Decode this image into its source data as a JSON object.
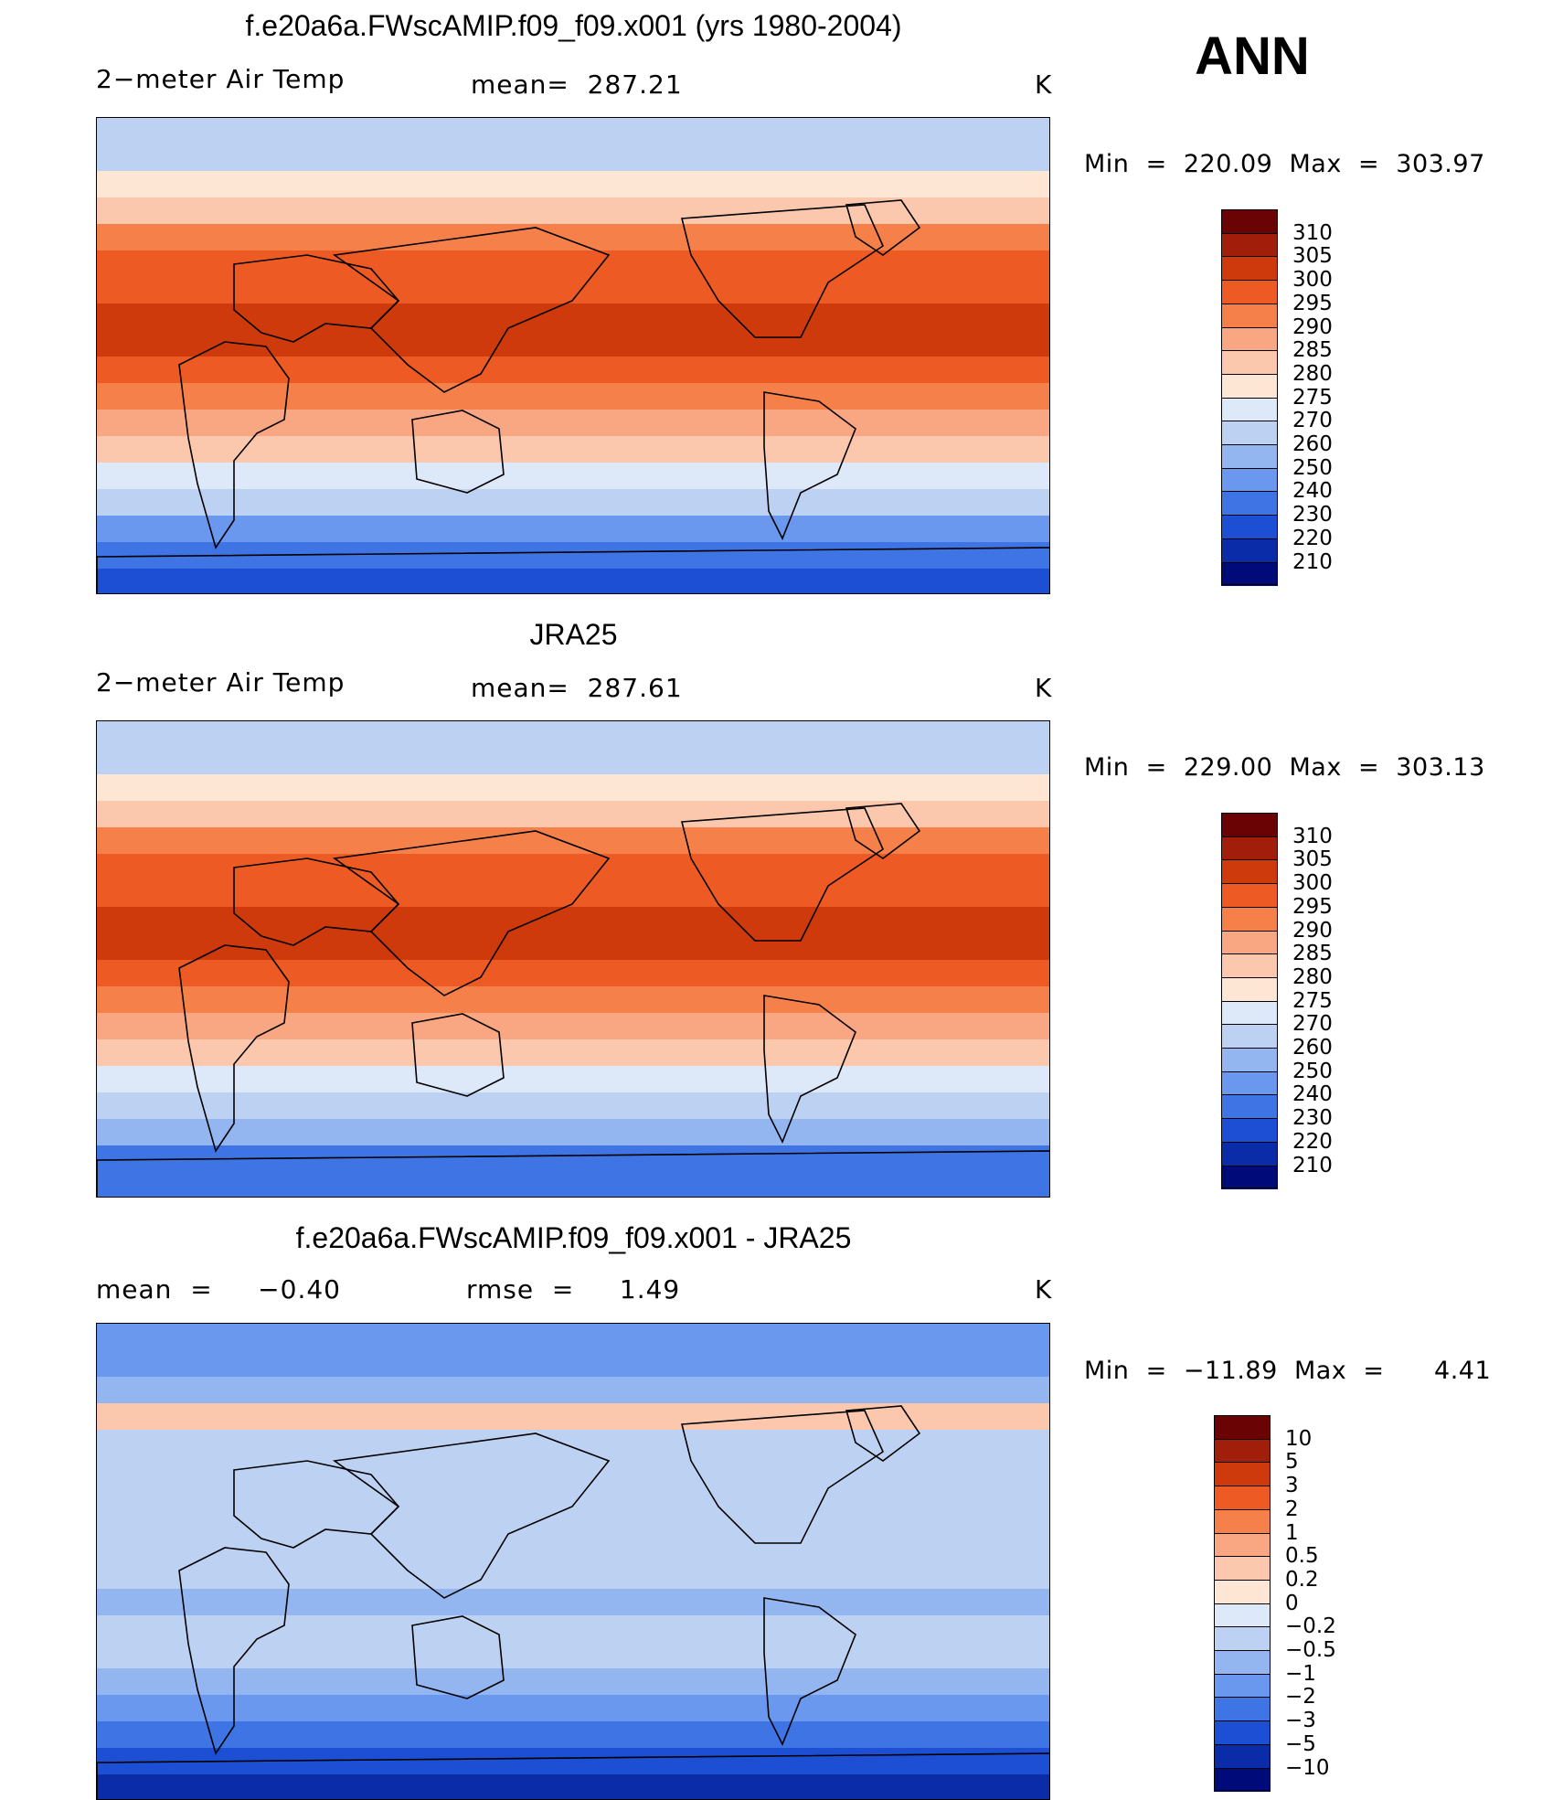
{
  "season": "ANN",
  "panels": [
    {
      "title": "f.e20a6a.FWscAMIP.f09_f09.x001 (yrs 1980-2004)",
      "left_label": "2−meter Air Temp",
      "center_label": "mean=  287.21",
      "right_label": "K",
      "minmax": "Min  =  220.09  Max  =  303.97",
      "palette": "abs"
    },
    {
      "title": "JRA25",
      "left_label": "2−meter Air Temp",
      "center_label": "mean=  287.61",
      "right_label": "K",
      "minmax": "Min  =  229.00  Max  =  303.13",
      "palette": "abs"
    },
    {
      "title": "f.e20a6a.FWscAMIP.f09_f09.x001 - JRA25",
      "left_label": "mean  =     −0.40",
      "center_label": "rmse  =     1.49",
      "right_label": "K",
      "minmax": "Min  =  −11.89  Max  =      4.41",
      "palette": "diff"
    }
  ],
  "chart_data": [
    {
      "type": "heatmap",
      "title": "f.e20a6a.FWscAMIP.f09_f09.x001 (yrs 1980-2004)",
      "variable": "2-meter Air Temp",
      "units": "K",
      "mean": 287.21,
      "min": 220.09,
      "max": 303.97,
      "colorbar_levels": [
        "310",
        "305",
        "300",
        "295",
        "290",
        "285",
        "280",
        "275",
        "270",
        "260",
        "250",
        "240",
        "230",
        "220",
        "210"
      ],
      "zonal_band_values_north_to_south": [
        260,
        268,
        277,
        283,
        292,
        297,
        299,
        300,
        300,
        298,
        294,
        287,
        280,
        272,
        262,
        248,
        235,
        225
      ]
    },
    {
      "type": "heatmap",
      "title": "JRA25",
      "variable": "2-meter Air Temp",
      "units": "K",
      "mean": 287.61,
      "min": 229.0,
      "max": 303.13,
      "colorbar_levels": [
        "310",
        "305",
        "300",
        "295",
        "290",
        "285",
        "280",
        "275",
        "270",
        "260",
        "250",
        "240",
        "230",
        "220",
        "210"
      ],
      "zonal_band_values_north_to_south": [
        262,
        268,
        276,
        283,
        291,
        296,
        299,
        300,
        300,
        298,
        294,
        287,
        280,
        273,
        264,
        250,
        238,
        230
      ]
    },
    {
      "type": "heatmap",
      "title": "f.e20a6a.FWscAMIP.f09_f09.x001 - JRA25",
      "variable": "difference",
      "units": "K",
      "mean": -0.4,
      "rmse": 1.49,
      "min": -11.89,
      "max": 4.41,
      "colorbar_levels": [
        "10",
        "5",
        "3",
        "2",
        "1",
        "0.5",
        "0.2",
        "0",
        "−0.2",
        "−0.5",
        "−1",
        "−2",
        "−3",
        "−5",
        "−10"
      ],
      "zonal_band_values_north_to_south": [
        -2,
        -1.5,
        -0.8,
        0.3,
        -0.3,
        -0.4,
        -0.5,
        -0.3,
        -0.3,
        -0.4,
        -0.6,
        -0.5,
        -0.3,
        -0.8,
        -1.2,
        -2.5,
        -4,
        -6
      ]
    }
  ],
  "palettes": {
    "abs": [
      "#6a0404",
      "#a01e0a",
      "#cf3a0c",
      "#ee5a24",
      "#f5804a",
      "#f9a683",
      "#fcc8ad",
      "#fde6d4",
      "#dde9f8",
      "#bdd2f3",
      "#94b6f0",
      "#6a98ee",
      "#3f74e4",
      "#1c4fd4",
      "#0a2ca8",
      "#000b7a"
    ],
    "diff": [
      "#6a0404",
      "#a01e0a",
      "#cf3a0c",
      "#ee5a24",
      "#f5804a",
      "#f9a683",
      "#fcc8ad",
      "#fde6d4",
      "#dde9f8",
      "#bdd2f3",
      "#94b6f0",
      "#6a98ee",
      "#3f74e4",
      "#1c4fd4",
      "#0a2ca8",
      "#000b7a"
    ]
  }
}
